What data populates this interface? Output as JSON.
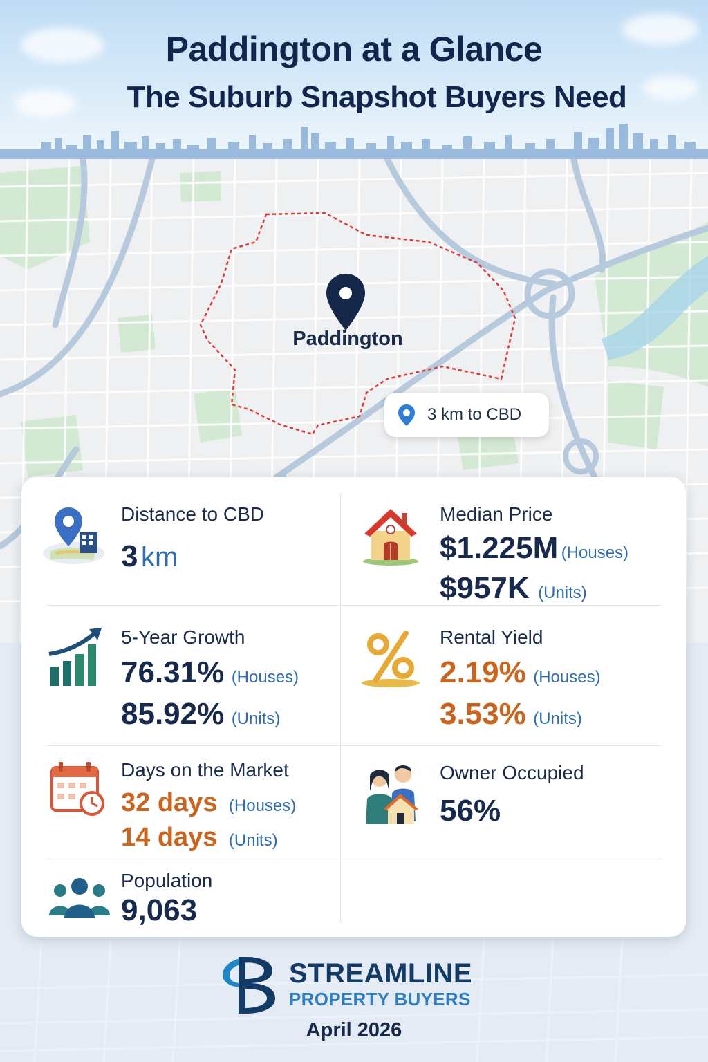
{
  "header": {
    "title": "Paddington at a Glance",
    "subtitle": "The Suburb Snapshot Buyers Need"
  },
  "map": {
    "suburb_label": "Paddington",
    "cbd_chip": "3 km to CBD",
    "boundary_color": "#e03a3a",
    "pin_color": "#15284a"
  },
  "stats": {
    "distance": {
      "label": "Distance to CBD",
      "value": "3",
      "unit": "km",
      "icon": "map-pin-city-icon"
    },
    "median_price": {
      "label": "Median Price",
      "houses_value": "$1.225M",
      "houses_tag": "(Houses)",
      "units_value": "$957K",
      "units_tag": "(Units)",
      "icon": "house-icon"
    },
    "growth": {
      "label": "5-Year Growth",
      "houses_value": "76.31%",
      "houses_tag": "(Houses)",
      "units_value": "85.92%",
      "units_tag": "(Units)",
      "icon": "growth-chart-icon"
    },
    "rental_yield": {
      "label": "Rental Yield",
      "houses_value": "2.19%",
      "houses_tag": "(Houses)",
      "units_value": "3.53%",
      "units_tag": "(Units)",
      "icon": "percent-icon"
    },
    "days_on_market": {
      "label": "Days on the Market",
      "houses_value": "32 days",
      "houses_tag": "(Houses)",
      "units_value": "14 days",
      "units_tag": "(Units)",
      "icon": "calendar-clock-icon"
    },
    "owner_occupied": {
      "label": "Owner Occupied",
      "value": "56%",
      "icon": "couple-house-icon"
    },
    "population": {
      "label": "Population",
      "value": "9,063",
      "icon": "people-group-icon"
    }
  },
  "footer": {
    "brand_line1": "STREAMLINE",
    "brand_line2": "PROPERTY BUYERS",
    "date": "April 2026"
  },
  "colors": {
    "navy": "#17294d",
    "accent_blue": "#2f6db3",
    "accent_orange": "#c8641e"
  }
}
